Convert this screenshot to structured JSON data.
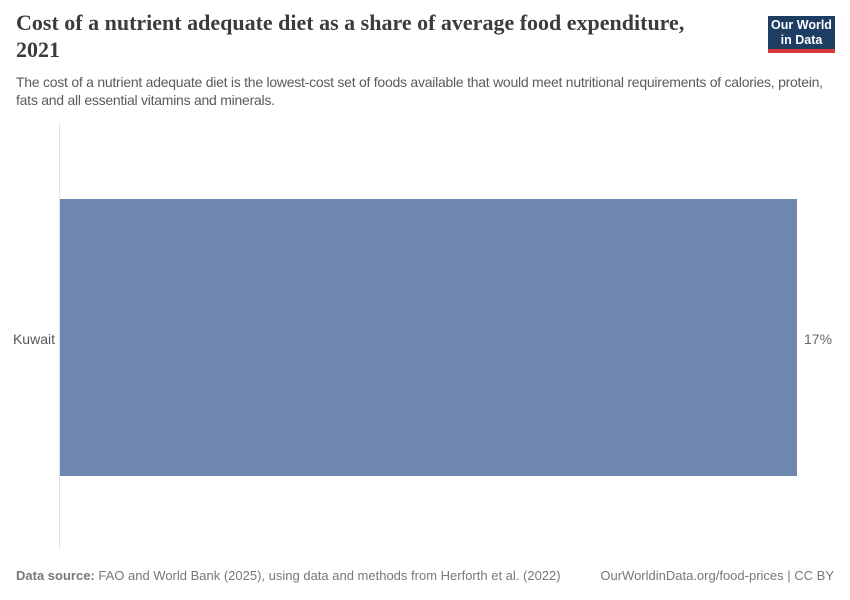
{
  "header": {
    "title": "Cost of a nutrient adequate diet as a share of average food expenditure, 2021",
    "subtitle": "The cost of a nutrient adequate diet is the lowest-cost set of foods available that would meet nutritional requirements of calories, protein, fats and all essential vitamins and minerals.",
    "logo": {
      "line1": "Our World",
      "line2": "in Data",
      "background_color": "#1d3d63",
      "accent_color": "#d73a3a"
    }
  },
  "chart_data": {
    "type": "bar",
    "orientation": "horizontal",
    "title": "Cost of a nutrient adequate diet as a share of average food expenditure, 2021",
    "categories": [
      "Kuwait"
    ],
    "values": [
      17
    ],
    "value_labels": [
      "17%"
    ],
    "unit": "%",
    "xlim": [
      0,
      17
    ],
    "xlabel": "",
    "ylabel": "",
    "grid": false,
    "legend": false,
    "bar_color": "#6d87b0",
    "axis_line_color": "#e0e0e0"
  },
  "footer": {
    "source_label": "Data source:",
    "source_text": " FAO and World Bank (2025), using data and methods from Herforth et al. (2022)",
    "url_text": "OurWorldinData.org/food-prices",
    "divider": " | ",
    "license_text": "CC BY"
  }
}
